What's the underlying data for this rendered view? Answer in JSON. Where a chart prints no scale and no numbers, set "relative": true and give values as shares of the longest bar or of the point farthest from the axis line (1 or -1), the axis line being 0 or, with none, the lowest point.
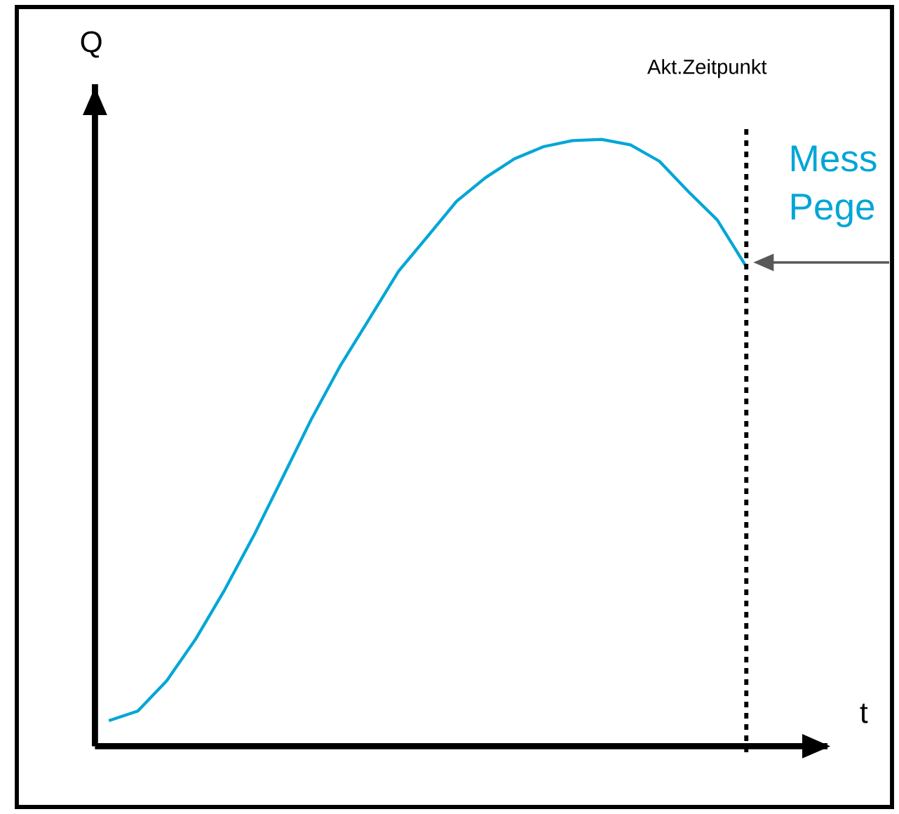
{
  "chart_data": {
    "type": "line",
    "relative": true,
    "xlabel": "t",
    "ylabel": "Q",
    "categories": [
      null,
      null,
      null,
      null,
      null,
      null,
      null,
      null,
      null,
      null,
      null,
      null,
      null,
      null,
      null,
      null,
      null,
      null,
      null,
      null,
      null,
      null,
      null
    ],
    "series": [
      {
        "color": "#00a6d6",
        "values": [
          0.042,
          0.058,
          0.108,
          0.177,
          0.258,
          0.347,
          0.443,
          0.54,
          0.628,
          0.705,
          0.783,
          0.84,
          0.898,
          0.937,
          0.968,
          0.988,
          0.998,
          1,
          0.991,
          0.964,
          0.914,
          0.867,
          0.79
        ]
      }
    ],
    "annotations": [
      "Akt.Zeitpunkt",
      "Mess",
      "Pege"
    ]
  }
}
